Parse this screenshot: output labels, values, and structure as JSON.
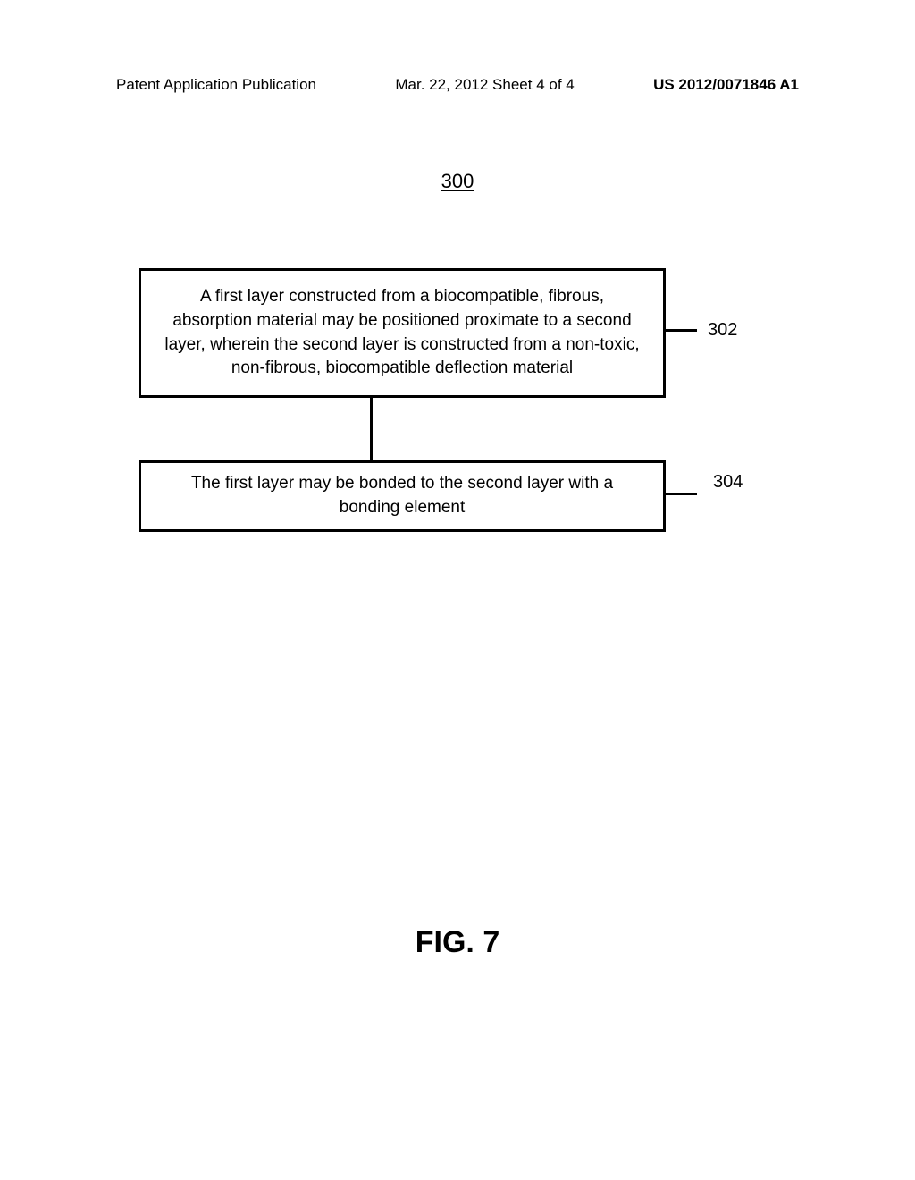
{
  "header": {
    "left": "Patent Application Publication",
    "center": "Mar. 22, 2012  Sheet 4 of 4",
    "right": "US 2012/0071846 A1"
  },
  "flowchart": {
    "figure_number": "300",
    "boxes": [
      {
        "text": "A first layer constructed from a biocompatible, fibrous, absorption material may be positioned proximate to a second layer, wherein the second layer is constructed from a non-toxic, non-fibrous, biocompatible deflection material",
        "label": "302"
      },
      {
        "text": "The first layer may be bonded to the second layer with a bonding element",
        "label": "304"
      }
    ]
  },
  "figure_title": "FIG. 7"
}
